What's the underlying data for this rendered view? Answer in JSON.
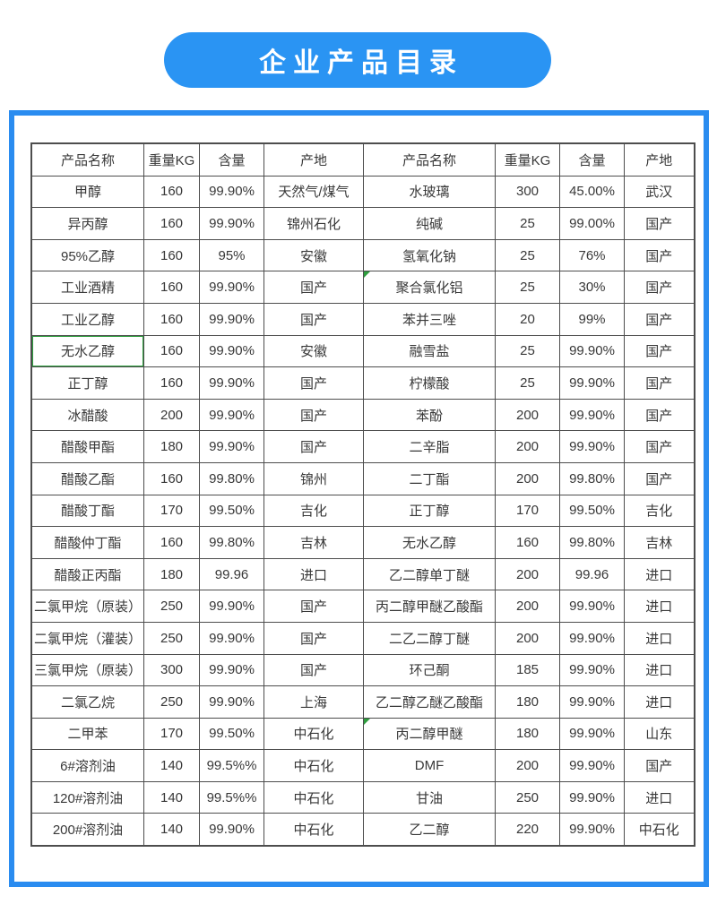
{
  "title": "企业产品目录",
  "colors": {
    "banner_blue": "#2a94f3",
    "frame_blue": "#2a8cf0",
    "border_dark": "#4d4d4d",
    "cell_text": "#383838",
    "flag_green": "#2e9e3e"
  },
  "table": {
    "headers": [
      "产品名称",
      "重量KG",
      "含量",
      "产地",
      "产品名称",
      "重量KG",
      "含量",
      "产地"
    ],
    "rows": [
      [
        "甲醇",
        "160",
        "99.90%",
        "天然气/煤气",
        "水玻璃",
        "300",
        "45.00%",
        "武汉"
      ],
      [
        "异丙醇",
        "160",
        "99.90%",
        "锦州石化",
        "纯碱",
        "25",
        "99.00%",
        "国产"
      ],
      [
        "95%乙醇",
        "160",
        "95%",
        "安徽",
        "氢氧化钠",
        "25",
        "76%",
        "国产"
      ],
      [
        "工业酒精",
        "160",
        "99.90%",
        "国产",
        "聚合氯化铝",
        "25",
        "30%",
        "国产"
      ],
      [
        "工业乙醇",
        "160",
        "99.90%",
        "国产",
        "苯并三唑",
        "20",
        "99%",
        "国产"
      ],
      [
        "无水乙醇",
        "160",
        "99.90%",
        "安徽",
        "融雪盐",
        "25",
        "99.90%",
        "国产"
      ],
      [
        "正丁醇",
        "160",
        "99.90%",
        "国产",
        "柠檬酸",
        "25",
        "99.90%",
        "国产"
      ],
      [
        "冰醋酸",
        "200",
        "99.90%",
        "国产",
        "苯酚",
        "200",
        "99.90%",
        "国产"
      ],
      [
        "醋酸甲酯",
        "180",
        "99.90%",
        "国产",
        "二辛脂",
        "200",
        "99.90%",
        "国产"
      ],
      [
        "醋酸乙酯",
        "160",
        "99.80%",
        "锦州",
        "二丁酯",
        "200",
        "99.80%",
        "国产"
      ],
      [
        "醋酸丁酯",
        "170",
        "99.50%",
        "吉化",
        "正丁醇",
        "170",
        "99.50%",
        "吉化"
      ],
      [
        "醋酸仲丁酯",
        "160",
        "99.80%",
        "吉林",
        "无水乙醇",
        "160",
        "99.80%",
        "吉林"
      ],
      [
        "醋酸正丙酯",
        "180",
        "99.96",
        "进口",
        "乙二醇单丁醚",
        "200",
        "99.96",
        "进口"
      ],
      [
        "二氯甲烷（原装）",
        "250",
        "99.90%",
        "国产",
        "丙二醇甲醚乙酸酯",
        "200",
        "99.90%",
        "进口"
      ],
      [
        "二氯甲烷（灌装）",
        "250",
        "99.90%",
        "国产",
        "二乙二醇丁醚",
        "200",
        "99.90%",
        "进口"
      ],
      [
        "三氯甲烷（原装）",
        "300",
        "99.90%",
        "国产",
        "环己酮",
        "185",
        "99.90%",
        "进口"
      ],
      [
        "二氯乙烷",
        "250",
        "99.90%",
        "上海",
        "乙二醇乙醚乙酸酯",
        "180",
        "99.90%",
        "进口"
      ],
      [
        "二甲苯",
        "170",
        "99.50%",
        "中石化",
        "丙二醇甲醚",
        "180",
        "99.90%",
        "山东"
      ],
      [
        "6#溶剂油",
        "140",
        "99.5%%",
        "中石化",
        "DMF",
        "200",
        "99.90%",
        "国产"
      ],
      [
        "120#溶剂油",
        "140",
        "99.5%%",
        "中石化",
        "甘油",
        "250",
        "99.90%",
        "进口"
      ],
      [
        "200#溶剂油",
        "140",
        "99.90%",
        "中石化",
        "乙二醇",
        "220",
        "99.90%",
        "中石化"
      ]
    ],
    "flag_cells": [
      [
        3,
        4
      ],
      [
        17,
        4
      ]
    ],
    "green_border_cells": [
      [
        5,
        0
      ]
    ]
  }
}
